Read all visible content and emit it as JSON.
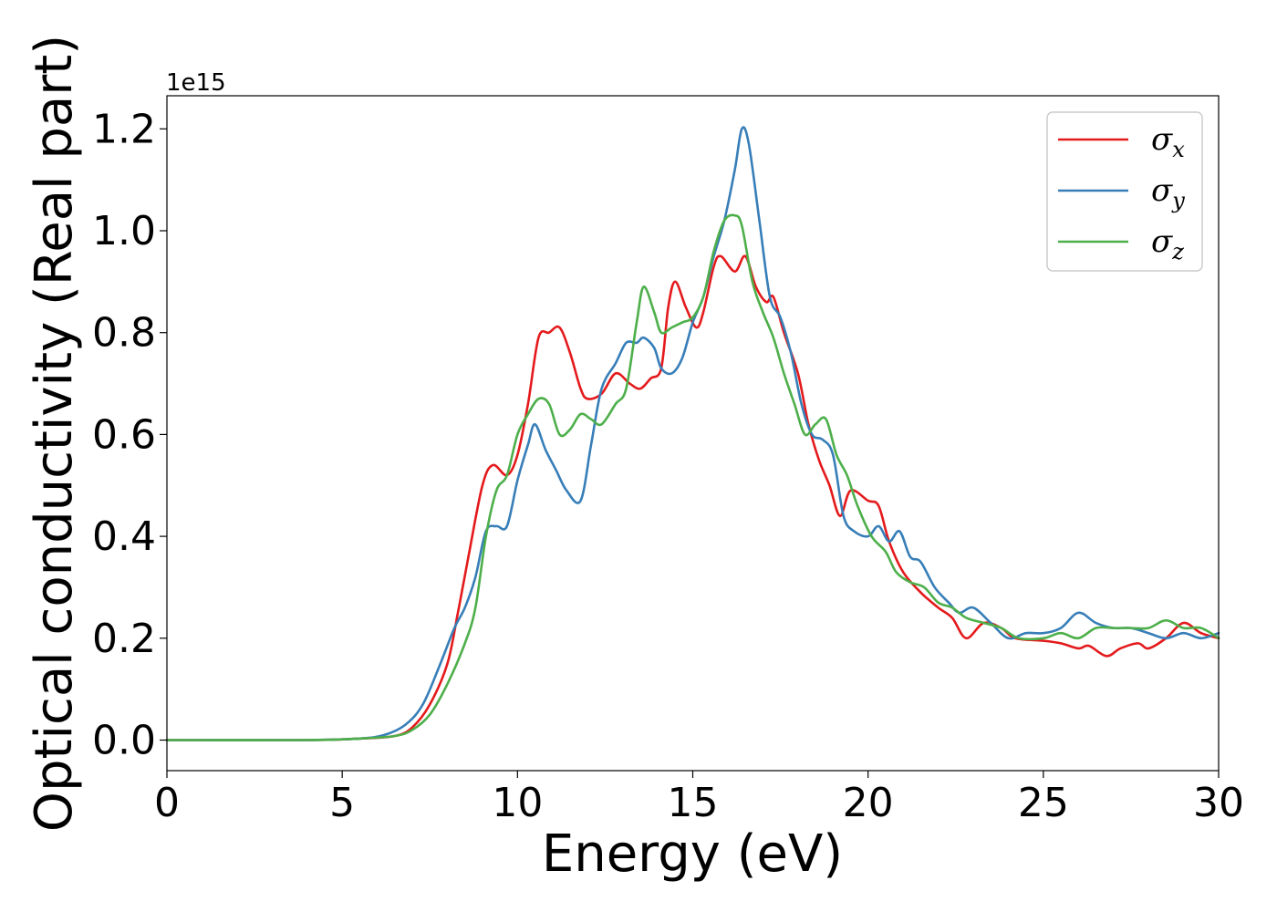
{
  "chart_data": {
    "type": "line",
    "xlabel": "Energy (eV)",
    "ylabel": "Optical conductivity (Real part)",
    "y_offset_label": "1e15",
    "xlim": [
      0,
      30
    ],
    "ylim": [
      -0.06,
      1.265
    ],
    "x_ticks": [
      0,
      5,
      10,
      15,
      20,
      25,
      30
    ],
    "x_tick_labels": [
      "0",
      "5",
      "10",
      "15",
      "20",
      "25",
      "30"
    ],
    "y_ticks": [
      0.0,
      0.2,
      0.4,
      0.6,
      0.8,
      1.0,
      1.2
    ],
    "y_tick_labels": [
      "0.0",
      "0.2",
      "0.4",
      "0.6",
      "0.8",
      "1.0",
      "1.2"
    ],
    "grid": false,
    "legend_position": "top-right",
    "series": [
      {
        "name": "σx",
        "legend_symbol": "σ",
        "legend_sub": "x",
        "color": "#e41a1c",
        "points": [
          [
            0,
            0
          ],
          [
            4,
            0
          ],
          [
            5.5,
            0.003
          ],
          [
            6.5,
            0.008
          ],
          [
            7,
            0.025
          ],
          [
            7.5,
            0.07
          ],
          [
            8,
            0.15
          ],
          [
            8.3,
            0.25
          ],
          [
            8.6,
            0.36
          ],
          [
            9,
            0.5
          ],
          [
            9.3,
            0.54
          ],
          [
            9.7,
            0.52
          ],
          [
            10,
            0.56
          ],
          [
            10.3,
            0.66
          ],
          [
            10.6,
            0.79
          ],
          [
            10.9,
            0.8
          ],
          [
            11.2,
            0.81
          ],
          [
            11.5,
            0.76
          ],
          [
            11.8,
            0.69
          ],
          [
            12,
            0.67
          ],
          [
            12.4,
            0.68
          ],
          [
            12.8,
            0.72
          ],
          [
            13.2,
            0.7
          ],
          [
            13.5,
            0.69
          ],
          [
            13.8,
            0.71
          ],
          [
            14.1,
            0.73
          ],
          [
            14.3,
            0.85
          ],
          [
            14.5,
            0.9
          ],
          [
            14.8,
            0.85
          ],
          [
            15.1,
            0.81
          ],
          [
            15.3,
            0.84
          ],
          [
            15.6,
            0.93
          ],
          [
            15.8,
            0.95
          ],
          [
            16.2,
            0.92
          ],
          [
            16.5,
            0.95
          ],
          [
            16.8,
            0.89
          ],
          [
            17.1,
            0.86
          ],
          [
            17.3,
            0.87
          ],
          [
            17.6,
            0.8
          ],
          [
            18,
            0.72
          ],
          [
            18.3,
            0.62
          ],
          [
            18.6,
            0.55
          ],
          [
            18.9,
            0.5
          ],
          [
            19.2,
            0.44
          ],
          [
            19.5,
            0.49
          ],
          [
            20,
            0.47
          ],
          [
            20.3,
            0.46
          ],
          [
            20.6,
            0.39
          ],
          [
            21,
            0.33
          ],
          [
            21.5,
            0.29
          ],
          [
            22,
            0.26
          ],
          [
            22.4,
            0.24
          ],
          [
            22.8,
            0.2
          ],
          [
            23.3,
            0.23
          ],
          [
            23.8,
            0.22
          ],
          [
            24.2,
            0.2
          ],
          [
            25,
            0.195
          ],
          [
            25.5,
            0.19
          ],
          [
            26,
            0.18
          ],
          [
            26.3,
            0.185
          ],
          [
            26.8,
            0.165
          ],
          [
            27.2,
            0.18
          ],
          [
            27.7,
            0.19
          ],
          [
            28,
            0.18
          ],
          [
            28.5,
            0.2
          ],
          [
            29,
            0.23
          ],
          [
            29.5,
            0.21
          ],
          [
            30,
            0.2
          ]
        ]
      },
      {
        "name": "σy",
        "legend_symbol": "σ",
        "legend_sub": "y",
        "color": "#377eb8",
        "points": [
          [
            0,
            0
          ],
          [
            4,
            0
          ],
          [
            5.5,
            0.003
          ],
          [
            6.2,
            0.01
          ],
          [
            6.8,
            0.03
          ],
          [
            7.3,
            0.07
          ],
          [
            7.8,
            0.15
          ],
          [
            8.2,
            0.22
          ],
          [
            8.5,
            0.26
          ],
          [
            8.8,
            0.32
          ],
          [
            9.1,
            0.41
          ],
          [
            9.4,
            0.42
          ],
          [
            9.7,
            0.42
          ],
          [
            10,
            0.51
          ],
          [
            10.3,
            0.58
          ],
          [
            10.5,
            0.62
          ],
          [
            10.8,
            0.57
          ],
          [
            11.1,
            0.53
          ],
          [
            11.4,
            0.49
          ],
          [
            11.8,
            0.47
          ],
          [
            12.1,
            0.58
          ],
          [
            12.4,
            0.69
          ],
          [
            12.8,
            0.74
          ],
          [
            13.1,
            0.78
          ],
          [
            13.4,
            0.78
          ],
          [
            13.6,
            0.79
          ],
          [
            13.9,
            0.77
          ],
          [
            14.1,
            0.73
          ],
          [
            14.4,
            0.72
          ],
          [
            14.7,
            0.75
          ],
          [
            15,
            0.82
          ],
          [
            15.3,
            0.87
          ],
          [
            15.6,
            0.95
          ],
          [
            15.9,
            1.02
          ],
          [
            16.2,
            1.12
          ],
          [
            16.4,
            1.2
          ],
          [
            16.6,
            1.17
          ],
          [
            16.9,
            1.02
          ],
          [
            17.2,
            0.87
          ],
          [
            17.5,
            0.83
          ],
          [
            17.8,
            0.76
          ],
          [
            18.1,
            0.66
          ],
          [
            18.4,
            0.6
          ],
          [
            18.7,
            0.59
          ],
          [
            19,
            0.56
          ],
          [
            19.3,
            0.44
          ],
          [
            19.6,
            0.41
          ],
          [
            20,
            0.4
          ],
          [
            20.3,
            0.42
          ],
          [
            20.6,
            0.39
          ],
          [
            20.9,
            0.41
          ],
          [
            21.2,
            0.36
          ],
          [
            21.5,
            0.35
          ],
          [
            21.9,
            0.3
          ],
          [
            22.3,
            0.27
          ],
          [
            22.6,
            0.25
          ],
          [
            23,
            0.26
          ],
          [
            23.5,
            0.23
          ],
          [
            24,
            0.2
          ],
          [
            24.5,
            0.21
          ],
          [
            25,
            0.21
          ],
          [
            25.5,
            0.22
          ],
          [
            26,
            0.25
          ],
          [
            26.5,
            0.23
          ],
          [
            27,
            0.22
          ],
          [
            27.5,
            0.22
          ],
          [
            28,
            0.21
          ],
          [
            28.5,
            0.2
          ],
          [
            29,
            0.21
          ],
          [
            29.5,
            0.2
          ],
          [
            30,
            0.21
          ]
        ]
      },
      {
        "name": "σz",
        "legend_symbol": "σ",
        "legend_sub": "z",
        "color": "#4daf4a",
        "points": [
          [
            0,
            0
          ],
          [
            4,
            0
          ],
          [
            5.5,
            0.003
          ],
          [
            6.5,
            0.008
          ],
          [
            7,
            0.02
          ],
          [
            7.5,
            0.05
          ],
          [
            8,
            0.11
          ],
          [
            8.5,
            0.19
          ],
          [
            8.8,
            0.26
          ],
          [
            9.1,
            0.4
          ],
          [
            9.4,
            0.49
          ],
          [
            9.7,
            0.52
          ],
          [
            10,
            0.6
          ],
          [
            10.3,
            0.64
          ],
          [
            10.6,
            0.67
          ],
          [
            10.9,
            0.66
          ],
          [
            11.2,
            0.6
          ],
          [
            11.5,
            0.61
          ],
          [
            11.8,
            0.64
          ],
          [
            12.1,
            0.63
          ],
          [
            12.4,
            0.62
          ],
          [
            12.8,
            0.66
          ],
          [
            13.1,
            0.69
          ],
          [
            13.4,
            0.82
          ],
          [
            13.6,
            0.89
          ],
          [
            13.9,
            0.84
          ],
          [
            14.1,
            0.8
          ],
          [
            14.4,
            0.81
          ],
          [
            14.7,
            0.82
          ],
          [
            15,
            0.83
          ],
          [
            15.3,
            0.87
          ],
          [
            15.6,
            0.96
          ],
          [
            15.9,
            1.02
          ],
          [
            16.2,
            1.03
          ],
          [
            16.4,
            1.01
          ],
          [
            16.7,
            0.9
          ],
          [
            17,
            0.84
          ],
          [
            17.3,
            0.79
          ],
          [
            17.6,
            0.72
          ],
          [
            17.9,
            0.66
          ],
          [
            18.2,
            0.6
          ],
          [
            18.5,
            0.62
          ],
          [
            18.8,
            0.63
          ],
          [
            19.1,
            0.56
          ],
          [
            19.4,
            0.52
          ],
          [
            19.7,
            0.46
          ],
          [
            20.1,
            0.4
          ],
          [
            20.5,
            0.37
          ],
          [
            20.8,
            0.33
          ],
          [
            21.2,
            0.31
          ],
          [
            21.6,
            0.3
          ],
          [
            22,
            0.27
          ],
          [
            22.4,
            0.26
          ],
          [
            22.8,
            0.24
          ],
          [
            23.3,
            0.23
          ],
          [
            23.8,
            0.22
          ],
          [
            24.3,
            0.2
          ],
          [
            25,
            0.2
          ],
          [
            25.5,
            0.21
          ],
          [
            26,
            0.2
          ],
          [
            26.5,
            0.22
          ],
          [
            27,
            0.22
          ],
          [
            27.5,
            0.22
          ],
          [
            28,
            0.22
          ],
          [
            28.5,
            0.235
          ],
          [
            29,
            0.22
          ],
          [
            29.5,
            0.22
          ],
          [
            30,
            0.2
          ]
        ]
      }
    ]
  }
}
